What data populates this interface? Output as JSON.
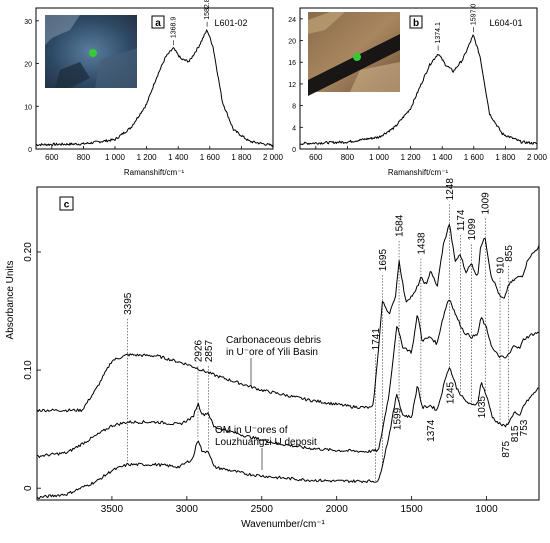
{
  "chart_data": [
    {
      "type": "line",
      "panel_label": "a",
      "sample": "L601-02",
      "xlabel": "Ramanshift/cm⁻¹",
      "xlim": [
        500,
        2000
      ],
      "ylim": [
        0,
        33
      ],
      "x_ticks": [
        600,
        800,
        1000,
        1200,
        1400,
        1600,
        1800,
        2000
      ],
      "x_tick_labels": [
        "600",
        "800",
        "1 000",
        "1 200",
        "1 400",
        "1 600",
        "1 800",
        "2 000"
      ],
      "y_ticks": [
        0,
        10,
        20,
        30
      ],
      "peaks": [
        {
          "x": 1368.9,
          "y": 23.6,
          "label": "1368.9"
        },
        {
          "x": 1582.8,
          "y": 27.9,
          "label": "1582.8"
        }
      ],
      "series": [
        {
          "values": [
            [
              500,
              1.0
            ],
            [
              800,
              1.2
            ],
            [
              1000,
              2.2
            ],
            [
              1100,
              5.0
            ],
            [
              1200,
              10.5
            ],
            [
              1260,
              16.5
            ],
            [
              1320,
              21.5
            ],
            [
              1368.9,
              23.6
            ],
            [
              1420,
              21.0
            ],
            [
              1470,
              20.5
            ],
            [
              1530,
              24.0
            ],
            [
              1582.8,
              27.9
            ],
            [
              1620,
              24.0
            ],
            [
              1680,
              11.0
            ],
            [
              1750,
              4.5
            ],
            [
              1850,
              1.8
            ],
            [
              2000,
              0.8
            ]
          ]
        }
      ]
    },
    {
      "type": "line",
      "panel_label": "b",
      "sample": "L604-01",
      "xlabel": "Ramanshift/cm⁻¹",
      "xlim": [
        500,
        2000
      ],
      "ylim": [
        0,
        26
      ],
      "x_ticks": [
        600,
        800,
        1000,
        1200,
        1400,
        1600,
        1800,
        2000
      ],
      "x_tick_labels": [
        "600",
        "800",
        "1 000",
        "1 200",
        "1 400",
        "1 600",
        "1 800",
        "2 000"
      ],
      "y_ticks": [
        0,
        4,
        8,
        12,
        16,
        20,
        24
      ],
      "peaks": [
        {
          "x": 1374.1,
          "y": 17.6,
          "label": "1374.1"
        },
        {
          "x": 1597.0,
          "y": 21.0,
          "label": "1597.0"
        }
      ],
      "series": [
        {
          "values": [
            [
              500,
              1.0
            ],
            [
              800,
              1.3
            ],
            [
              1000,
              2.2
            ],
            [
              1100,
              4.0
            ],
            [
              1200,
              7.5
            ],
            [
              1260,
              11.5
            ],
            [
              1320,
              15.5
            ],
            [
              1374.1,
              17.6
            ],
            [
              1420,
              15.6
            ],
            [
              1470,
              14.3
            ],
            [
              1530,
              16.5
            ],
            [
              1597.0,
              21.0
            ],
            [
              1640,
              17.0
            ],
            [
              1700,
              6.5
            ],
            [
              1780,
              2.8
            ],
            [
              1900,
              1.3
            ],
            [
              2000,
              1.0
            ]
          ]
        }
      ]
    },
    {
      "type": "line",
      "panel_label": "c",
      "xlabel": "Wavenumber/cm⁻¹",
      "ylabel": "Absorbance Units",
      "xlim": [
        4000,
        650
      ],
      "ylim": [
        -0.01,
        0.255
      ],
      "x_ticks": [
        3500,
        3000,
        2500,
        2000,
        1500,
        1000
      ],
      "y_ticks": [
        0,
        0.1,
        0.2
      ],
      "y_tick_labels": [
        "0",
        "0.10",
        "0.20"
      ],
      "annotations": [
        {
          "text": "Carbonaceous debris",
          "line": 1
        },
        {
          "text": "in U⁻ore of Yili Basin",
          "line": 2
        },
        {
          "text": "OM in U⁻ores of",
          "line": 1
        },
        {
          "text": "Louzhuangzi U deposit",
          "line": 2
        }
      ],
      "top_peak_labels": [
        "3395",
        "2926",
        "2857",
        "1741",
        "1695",
        "1584",
        "1438",
        "1248",
        "1174",
        "1099",
        "1009",
        "910",
        "855"
      ],
      "bottom_peak_labels": [
        "1599",
        "1374",
        "1245",
        "1035",
        "875",
        "815",
        "753"
      ],
      "series": [
        {
          "color": "#000000",
          "values": [
            [
              4000,
              0.066
            ],
            [
              3700,
              0.066
            ],
            [
              3600,
              0.085
            ],
            [
              3500,
              0.108
            ],
            [
              3395,
              0.113
            ],
            [
              3200,
              0.112
            ],
            [
              3000,
              0.105
            ],
            [
              2800,
              0.095
            ],
            [
              2500,
              0.083
            ],
            [
              2200,
              0.075
            ],
            [
              1900,
              0.069
            ],
            [
              1760,
              0.068
            ],
            [
              1741,
              0.09
            ],
            [
              1720,
              0.12
            ],
            [
              1695,
              0.158
            ],
            [
              1650,
              0.148
            ],
            [
              1610,
              0.16
            ],
            [
              1584,
              0.193
            ],
            [
              1540,
              0.158
            ],
            [
              1480,
              0.165
            ],
            [
              1438,
              0.178
            ],
            [
              1400,
              0.172
            ],
            [
              1374,
              0.185
            ],
            [
              1330,
              0.17
            ],
            [
              1290,
              0.205
            ],
            [
              1248,
              0.224
            ],
            [
              1210,
              0.192
            ],
            [
              1174,
              0.198
            ],
            [
              1140,
              0.183
            ],
            [
              1099,
              0.19
            ],
            [
              1060,
              0.178
            ],
            [
              1040,
              0.205
            ],
            [
              1009,
              0.212
            ],
            [
              970,
              0.18
            ],
            [
              940,
              0.172
            ],
            [
              910,
              0.162
            ],
            [
              880,
              0.16
            ],
            [
              855,
              0.172
            ],
            [
              800,
              0.178
            ],
            [
              760,
              0.18
            ],
            [
              720,
              0.195
            ],
            [
              680,
              0.2
            ],
            [
              650,
              0.205
            ]
          ]
        },
        {
          "color": "#d63b3b",
          "values": [
            [
              4000,
              0.027
            ],
            [
              3800,
              0.03
            ],
            [
              3600,
              0.045
            ],
            [
              3500,
              0.053
            ],
            [
              3395,
              0.056
            ],
            [
              3200,
              0.056
            ],
            [
              3050,
              0.054
            ],
            [
              2960,
              0.06
            ],
            [
              2926,
              0.072
            ],
            [
              2895,
              0.062
            ],
            [
              2857,
              0.064
            ],
            [
              2820,
              0.052
            ],
            [
              2600,
              0.044
            ],
            [
              2400,
              0.038
            ],
            [
              2200,
              0.034
            ],
            [
              2000,
              0.032
            ],
            [
              1800,
              0.031
            ],
            [
              1720,
              0.032
            ],
            [
              1650,
              0.08
            ],
            [
              1599,
              0.138
            ],
            [
              1560,
              0.12
            ],
            [
              1500,
              0.115
            ],
            [
              1460,
              0.148
            ],
            [
              1430,
              0.125
            ],
            [
              1374,
              0.128
            ],
            [
              1330,
              0.122
            ],
            [
              1300,
              0.14
            ],
            [
              1260,
              0.158
            ],
            [
              1245,
              0.16
            ],
            [
              1200,
              0.145
            ],
            [
              1150,
              0.132
            ],
            [
              1100,
              0.128
            ],
            [
              1060,
              0.13
            ],
            [
              1035,
              0.145
            ],
            [
              1000,
              0.135
            ],
            [
              960,
              0.118
            ],
            [
              920,
              0.112
            ],
            [
              875,
              0.11
            ],
            [
              840,
              0.115
            ],
            [
              815,
              0.122
            ],
            [
              780,
              0.118
            ],
            [
              753,
              0.126
            ],
            [
              700,
              0.13
            ],
            [
              650,
              0.132
            ]
          ]
        },
        {
          "color": "#33337f",
          "values": [
            [
              4000,
              -0.008
            ],
            [
              3800,
              -0.005
            ],
            [
              3600,
              0.006
            ],
            [
              3500,
              0.015
            ],
            [
              3395,
              0.02
            ],
            [
              3200,
              0.02
            ],
            [
              3050,
              0.018
            ],
            [
              2960,
              0.025
            ],
            [
              2926,
              0.042
            ],
            [
              2895,
              0.03
            ],
            [
              2857,
              0.032
            ],
            [
              2820,
              0.018
            ],
            [
              2600,
              0.012
            ],
            [
              2400,
              0.009
            ],
            [
              2200,
              0.007
            ],
            [
              2000,
              0.006
            ],
            [
              1800,
              0.006
            ],
            [
              1720,
              0.006
            ],
            [
              1650,
              0.045
            ],
            [
              1599,
              0.08
            ],
            [
              1560,
              0.062
            ],
            [
              1500,
              0.06
            ],
            [
              1460,
              0.088
            ],
            [
              1430,
              0.068
            ],
            [
              1374,
              0.07
            ],
            [
              1330,
              0.066
            ],
            [
              1300,
              0.08
            ],
            [
              1260,
              0.1
            ],
            [
              1245,
              0.102
            ],
            [
              1200,
              0.085
            ],
            [
              1150,
              0.075
            ],
            [
              1100,
              0.07
            ],
            [
              1060,
              0.072
            ],
            [
              1035,
              0.09
            ],
            [
              1000,
              0.078
            ],
            [
              960,
              0.06
            ],
            [
              920,
              0.055
            ],
            [
              875,
              0.052
            ],
            [
              840,
              0.058
            ],
            [
              815,
              0.065
            ],
            [
              780,
              0.06
            ],
            [
              753,
              0.07
            ],
            [
              700,
              0.078
            ],
            [
              650,
              0.085
            ]
          ]
        }
      ]
    }
  ],
  "insets": [
    {
      "theme": "dark-blue photomicrograph",
      "marker_color": "#33cc33"
    },
    {
      "theme": "brown photomicrograph with black band",
      "marker_color": "#33cc33"
    }
  ]
}
